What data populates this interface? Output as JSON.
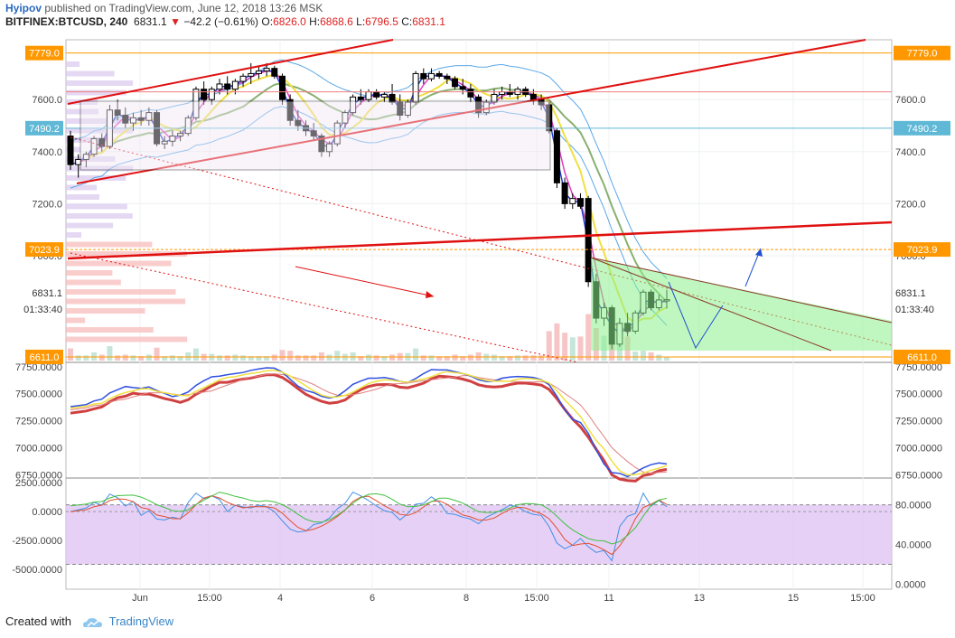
{
  "header": {
    "author": "Hyipov",
    "published": "published on TradingView.com, June 12, 2018 13:26 MSK",
    "symbol": "BITFINEX:BTCUSD, 240",
    "last": "6831.1",
    "change": "−42.2 (−0.61%)",
    "o_label": "O:",
    "o": "6826.0",
    "h_label": "H:",
    "h": "6868.6",
    "l_label": "L:",
    "l": "6796.5",
    "c_label": "C:",
    "c": "6831.1"
  },
  "footer": {
    "created": "Created with",
    "brand": "TradingView"
  },
  "colors": {
    "up": "#ffffff",
    "down": "#000000",
    "orange": "#ff9800",
    "teal": "#5fb8d6",
    "red": "#e01010",
    "green_fill": "#8cf08c",
    "stoch_fill": "#e0c4f4"
  },
  "chart_data": [
    {
      "type": "candlestick",
      "name": "price",
      "x_ticks": [
        "Jun",
        "15:00",
        "4",
        "6",
        "8",
        "15:00",
        "11",
        "13",
        "15",
        "15:00"
      ],
      "y_ticks": [
        "7600.0",
        "7400.0",
        "7200.0",
        "7000.0",
        "6831.1",
        "01:33:40",
        "6611.0"
      ],
      "ylim": [
        6590,
        7830
      ],
      "price_labels": [
        "7779.0",
        "7490.2",
        "7023.9",
        "6611.0"
      ],
      "candles": [
        [
          7460,
          7480,
          7330,
          7350
        ],
        [
          7350,
          7390,
          7300,
          7370
        ],
        [
          7370,
          7400,
          7340,
          7390
        ],
        [
          7390,
          7460,
          7380,
          7450
        ],
        [
          7450,
          7470,
          7400,
          7420
        ],
        [
          7420,
          7580,
          7410,
          7560
        ],
        [
          7560,
          7600,
          7520,
          7540
        ],
        [
          7540,
          7570,
          7490,
          7510
        ],
        [
          7510,
          7550,
          7480,
          7530
        ],
        [
          7530,
          7560,
          7500,
          7520
        ],
        [
          7520,
          7570,
          7500,
          7550
        ],
        [
          7550,
          7560,
          7420,
          7430
        ],
        [
          7430,
          7460,
          7410,
          7440
        ],
        [
          7440,
          7480,
          7420,
          7460
        ],
        [
          7460,
          7480,
          7440,
          7470
        ],
        [
          7470,
          7540,
          7460,
          7530
        ],
        [
          7530,
          7650,
          7520,
          7640
        ],
        [
          7640,
          7670,
          7580,
          7600
        ],
        [
          7600,
          7650,
          7580,
          7640
        ],
        [
          7640,
          7680,
          7620,
          7660
        ],
        [
          7660,
          7690,
          7620,
          7640
        ],
        [
          7640,
          7680,
          7620,
          7670
        ],
        [
          7670,
          7700,
          7650,
          7690
        ],
        [
          7690,
          7740,
          7660,
          7700
        ],
        [
          7700,
          7730,
          7680,
          7710
        ],
        [
          7710,
          7740,
          7690,
          7720
        ],
        [
          7720,
          7730,
          7680,
          7690
        ],
        [
          7690,
          7700,
          7580,
          7600
        ],
        [
          7600,
          7620,
          7500,
          7520
        ],
        [
          7520,
          7560,
          7480,
          7500
        ],
        [
          7500,
          7520,
          7460,
          7480
        ],
        [
          7480,
          7510,
          7440,
          7460
        ],
        [
          7460,
          7470,
          7380,
          7400
        ],
        [
          7400,
          7440,
          7380,
          7430
        ],
        [
          7430,
          7520,
          7420,
          7510
        ],
        [
          7510,
          7560,
          7490,
          7550
        ],
        [
          7550,
          7620,
          7540,
          7610
        ],
        [
          7610,
          7640,
          7580,
          7600
        ],
        [
          7600,
          7640,
          7590,
          7630
        ],
        [
          7630,
          7640,
          7600,
          7610
        ],
        [
          7610,
          7630,
          7590,
          7620
        ],
        [
          7620,
          7660,
          7580,
          7590
        ],
        [
          7590,
          7620,
          7520,
          7540
        ],
        [
          7540,
          7600,
          7530,
          7590
        ],
        [
          7590,
          7710,
          7580,
          7700
        ],
        [
          7700,
          7720,
          7660,
          7680
        ],
        [
          7680,
          7720,
          7670,
          7700
        ],
        [
          7700,
          7710,
          7680,
          7690
        ],
        [
          7690,
          7700,
          7660,
          7680
        ],
        [
          7680,
          7690,
          7640,
          7650
        ],
        [
          7650,
          7680,
          7620,
          7640
        ],
        [
          7640,
          7660,
          7590,
          7610
        ],
        [
          7610,
          7620,
          7530,
          7550
        ],
        [
          7550,
          7600,
          7540,
          7590
        ],
        [
          7590,
          7640,
          7580,
          7620
        ],
        [
          7620,
          7650,
          7600,
          7630
        ],
        [
          7630,
          7660,
          7610,
          7620
        ],
        [
          7620,
          7650,
          7600,
          7640
        ],
        [
          7640,
          7650,
          7610,
          7620
        ],
        [
          7620,
          7640,
          7580,
          7600
        ],
        [
          7600,
          7620,
          7560,
          7580
        ],
        [
          7580,
          7590,
          7470,
          7480
        ],
        [
          7480,
          7490,
          7260,
          7280
        ],
        [
          7280,
          7300,
          7180,
          7200
        ],
        [
          7200,
          7240,
          7180,
          7220
        ],
        [
          7220,
          7240,
          7180,
          7190
        ],
        [
          7220,
          7230,
          6880,
          6900
        ],
        [
          6900,
          6930,
          6740,
          6760
        ],
        [
          6760,
          6820,
          6730,
          6800
        ],
        [
          6800,
          6810,
          6640,
          6660
        ],
        [
          6660,
          6760,
          6650,
          6740
        ],
        [
          6740,
          6780,
          6690,
          6710
        ],
        [
          6710,
          6790,
          6700,
          6780
        ],
        [
          6780,
          6870,
          6770,
          6860
        ],
        [
          6860,
          6870,
          6790,
          6800
        ],
        [
          6800,
          6850,
          6790,
          6830
        ],
        [
          6826,
          6868.6,
          6796.5,
          6831.1
        ]
      ]
    },
    {
      "type": "line",
      "name": "stochastic-rsi",
      "y_ticks": [
        "7750.0000",
        "7500.0000",
        "7250.0000",
        "7000.0000",
        "6750.0000"
      ],
      "ylim": [
        6720,
        7790
      ]
    },
    {
      "type": "line",
      "name": "oscillator",
      "y_ticks_left": [
        "2500.0000",
        "0.0000",
        "-2500.0000",
        "-5000.0000"
      ],
      "y_ticks_right": [
        "80.0000",
        "40.0000",
        "0.0000"
      ],
      "ylim_left": [
        -6700,
        2900
      ],
      "ylim_right": [
        -5,
        107
      ]
    }
  ]
}
